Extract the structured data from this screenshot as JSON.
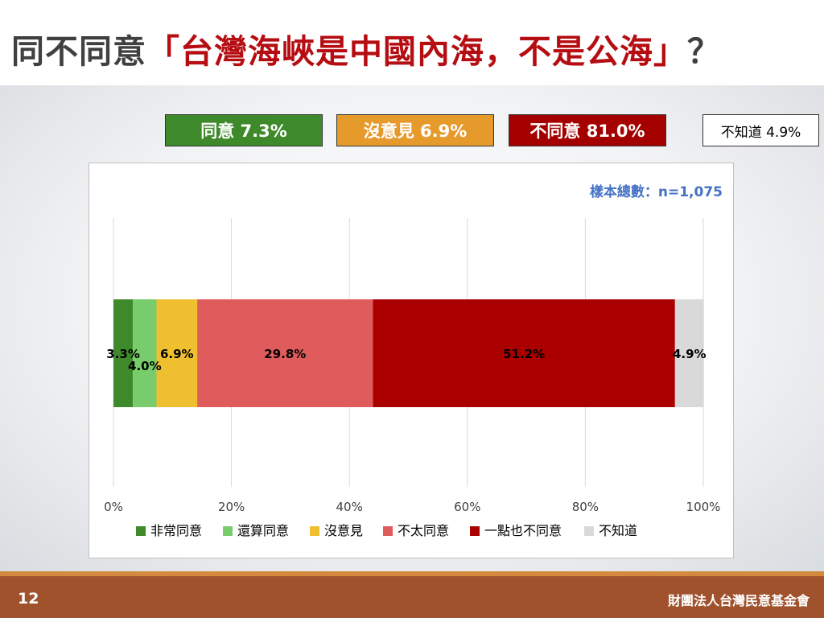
{
  "title": {
    "prefix": "同不同意",
    "quote": "「台灣海峽是中國內海，不是公海」",
    "suffix": "？"
  },
  "summary": [
    {
      "label": "同意 7.3%",
      "color": "#3e8a2b",
      "text_color": "#ffffff"
    },
    {
      "label": "沒意見 6.9%",
      "color": "#e79a2c",
      "text_color": "#ffffff"
    },
    {
      "label": "不同意 81.0%",
      "color": "#a50000",
      "text_color": "#ffffff"
    },
    {
      "label": "不知道 4.9%",
      "color": "#ffffff",
      "text_color": "#000000"
    }
  ],
  "chart_data": {
    "type": "bar",
    "orientation": "horizontal",
    "stacked": true,
    "sample_note": "樣本總數：n=1,075",
    "xlim": [
      0,
      100
    ],
    "ticks": [
      "0%",
      "20%",
      "40%",
      "60%",
      "80%",
      "100%"
    ],
    "tick_values": [
      0,
      20,
      40,
      60,
      80,
      100
    ],
    "grid": true,
    "legend_position": "bottom",
    "series": [
      {
        "name": "非常同意",
        "value": 3.3,
        "label": "3.3%",
        "color": "#3e8a2b"
      },
      {
        "name": "還算同意",
        "value": 4.0,
        "label": "4.0%",
        "color": "#78cc6c"
      },
      {
        "name": "沒意見",
        "value": 6.9,
        "label": "6.9%",
        "color": "#efbf2f"
      },
      {
        "name": "不太同意",
        "value": 29.8,
        "label": "29.8%",
        "color": "#e05b5b"
      },
      {
        "name": "一點也不同意",
        "value": 51.2,
        "label": "51.2%",
        "color": "#aa0000"
      },
      {
        "name": "不知道",
        "value": 4.9,
        "label": "4.9%",
        "color": "#d9d9d9"
      }
    ]
  },
  "footer": {
    "page_number": "12",
    "organization": "財團法人台灣民意基金會"
  }
}
